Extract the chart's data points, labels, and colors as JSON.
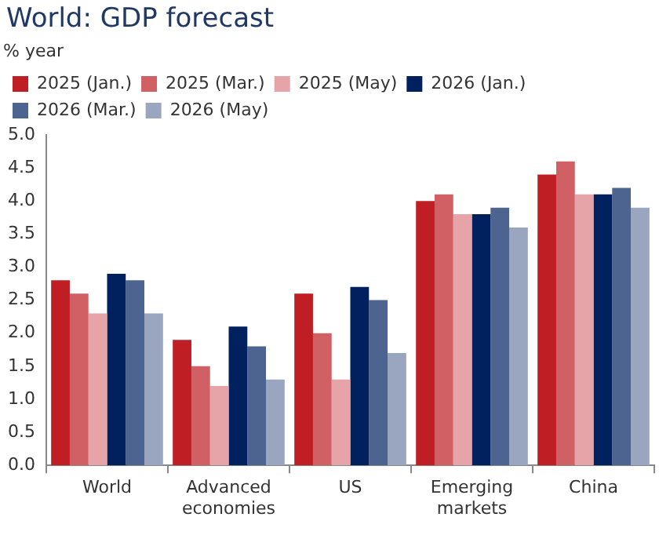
{
  "chart_data": {
    "type": "bar",
    "title": "World: GDP forecast",
    "ylabel": "% year",
    "categories": [
      "World",
      "Advanced economies",
      "US",
      "Emerging markets",
      "China"
    ],
    "series": [
      {
        "name": "2025 (Jan.)",
        "color": "#be1e24",
        "values": [
          2.8,
          1.9,
          2.6,
          4.0,
          4.4
        ]
      },
      {
        "name": "2025 (Mar.)",
        "color": "#d16064",
        "values": [
          2.6,
          1.5,
          2.0,
          4.1,
          4.6
        ]
      },
      {
        "name": "2025 (May)",
        "color": "#e6a4a8",
        "values": [
          2.3,
          1.2,
          1.3,
          3.8,
          4.1
        ]
      },
      {
        "name": "2026 (Jan.)",
        "color": "#00215e",
        "values": [
          2.9,
          2.1,
          2.7,
          3.8,
          4.1
        ]
      },
      {
        "name": "2026 (Mar.)",
        "color": "#4d6490",
        "values": [
          2.8,
          1.8,
          2.5,
          3.9,
          4.2
        ]
      },
      {
        "name": "2026 (May)",
        "color": "#9aa6c0",
        "values": [
          2.3,
          1.3,
          1.7,
          3.6,
          3.9
        ]
      }
    ],
    "ylim": [
      0,
      5
    ],
    "yticks": [
      {
        "value": 0,
        "label": "0.0"
      },
      {
        "value": 0.5,
        "label": "0.5"
      },
      {
        "value": 1,
        "label": "1.0"
      },
      {
        "value": 1.5,
        "label": "1.5"
      },
      {
        "value": 2,
        "label": "2.0"
      },
      {
        "value": 2.5,
        "label": "2.5"
      },
      {
        "value": 3,
        "label": "3.0"
      },
      {
        "value": 3.5,
        "label": "3.5"
      },
      {
        "value": 4,
        "label": "4.0"
      },
      {
        "value": 4.5,
        "label": "4.5"
      },
      {
        "value": 5,
        "label": "5.0"
      }
    ],
    "grid": false,
    "legend": "top left"
  }
}
